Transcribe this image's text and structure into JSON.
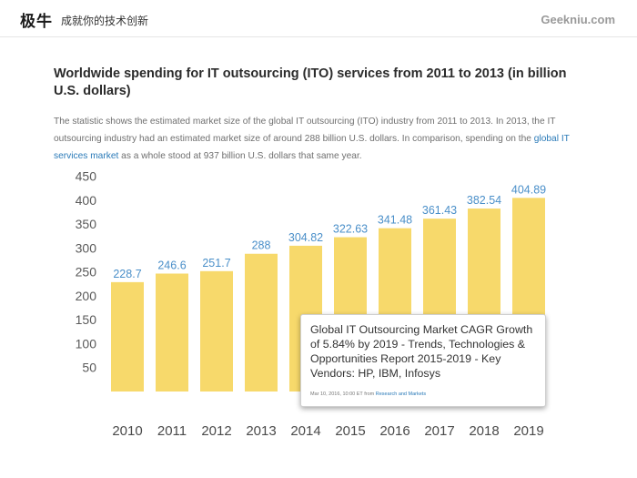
{
  "header": {
    "logo": "极牛",
    "tagline": "成就你的技术创新",
    "site": "Geekniu.com"
  },
  "article": {
    "title": "Worldwide spending for IT outsourcing (ITO) services from 2011 to 2013 (in billion U.S. dollars)",
    "desc_part1": "The statistic shows the estimated market size of the global IT outsourcing (ITO) industry from 2011 to 2013. In 2013, the IT outsourcing industry had an estimated market size of around 288 billion U.S. dollars. In comparison, spending on the ",
    "desc_link": "global IT services market",
    "desc_part2": " as a whole stood at 937 billion U.S. dollars that same year."
  },
  "callout": {
    "title": "Global IT Outsourcing Market CAGR Growth of 5.84% by 2019 - Trends, Technologies & Opportunities Report 2015-2019 - Key Vendors: HP, IBM, Infosys",
    "meta_date": "Mar 10, 2016, 10:00 ET from ",
    "meta_source": "Research and Markets"
  },
  "chart_data": {
    "type": "bar",
    "categories": [
      "2010",
      "2011",
      "2012",
      "2013",
      "2014",
      "2015",
      "2016",
      "2017",
      "2018",
      "2019"
    ],
    "values": [
      228.7,
      246.6,
      251.7,
      288,
      304.82,
      322.63,
      341.48,
      361.43,
      382.54,
      404.89
    ],
    "data_labels": [
      "228.7",
      "246.6",
      "251.7",
      "288",
      "304.82",
      "322.63",
      "341.48",
      "361.43",
      "382.54",
      "404.89"
    ],
    "yticks": [
      50,
      100,
      150,
      200,
      250,
      300,
      350,
      400,
      450
    ],
    "ylim": [
      0,
      450
    ],
    "bar_color": "#f7d96b",
    "label_color": "#4a8fc9",
    "grid": false
  }
}
